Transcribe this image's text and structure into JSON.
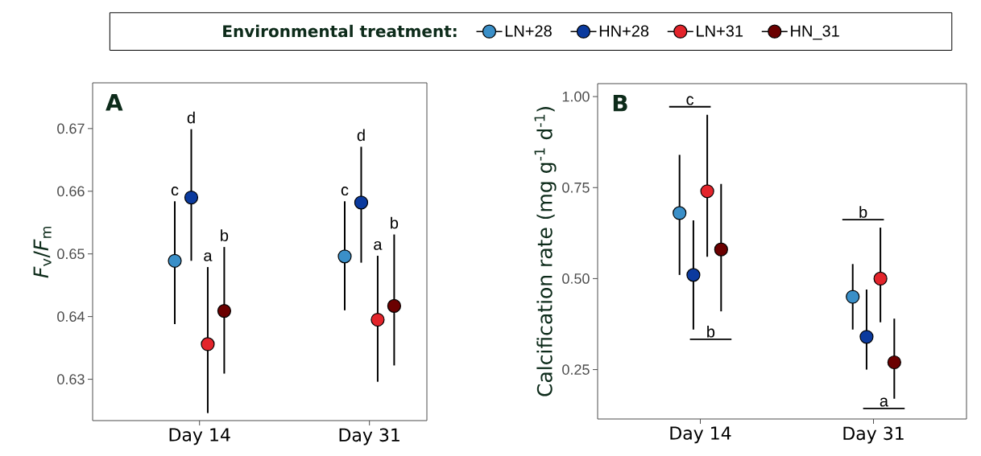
{
  "chart_data": [
    {
      "type": "scatter",
      "title": "A",
      "ylabel": "*F*$_{v}$/*F*$_{m}$",
      "legend_title": "Environmental treatment:",
      "legend": "top",
      "categories": [
        "Day 14",
        "Day 31"
      ],
      "ylim": [
        0.6234,
        0.6773
      ],
      "yticks": [
        0.63,
        0.64,
        0.65,
        0.66,
        0.67
      ],
      "series": [
        {
          "name": "LN+28",
          "color": "#3a8fc8",
          "values": [
            0.6489,
            0.6496
          ],
          "errors": [
            [
              0.6388,
              0.6584
            ],
            [
              0.641,
              0.6584
            ]
          ]
        },
        {
          "name": "HN+28",
          "color": "#0b3a9e",
          "values": [
            0.659,
            0.6582
          ],
          "errors": [
            [
              0.6489,
              0.6699
            ],
            [
              0.6486,
              0.6671
            ]
          ]
        },
        {
          "name": "LN+31",
          "color": "#e3242b",
          "values": [
            0.6356,
            0.6395
          ],
          "errors": [
            [
              0.6246,
              0.6479
            ],
            [
              0.6296,
              0.6497
            ]
          ]
        },
        {
          "name": "HN_31",
          "color": "#6b0000",
          "values": [
            0.6409,
            0.6417
          ],
          "errors": [
            [
              0.6309,
              0.6511
            ],
            [
              0.6322,
              0.6531
            ]
          ]
        }
      ],
      "annotations": [
        "c",
        "d",
        "a",
        "b",
        "c",
        "d",
        "a",
        "b"
      ]
    },
    {
      "type": "scatter",
      "title": "B",
      "ylabel": "Calcification rate (mg g$^{-1}$ d$^{-1}$)",
      "categories": [
        "Day 14",
        "Day 31"
      ],
      "ylim": [
        0.1143,
        1.0356
      ],
      "yticks": [
        0.25,
        {
          "value": 0.5,
          "label": "0.50"
        },
        0.75,
        {
          "value": 1.0,
          "label": "1.00"
        }
      ],
      "series": [
        {
          "color": "#3a8fc8",
          "values": [
            0.68,
            0.45
          ],
          "errors": [
            [
              0.51,
              0.84
            ],
            [
              0.36,
              0.54
            ]
          ]
        },
        {
          "color": "#0b3a9e",
          "values": [
            0.51,
            0.34
          ],
          "errors": [
            [
              0.36,
              0.66
            ],
            [
              0.25,
              0.47
            ]
          ]
        },
        {
          "color": "#e3242b",
          "values": [
            0.74,
            0.5
          ],
          "errors": [
            [
              0.56,
              0.95
            ],
            [
              0.38,
              0.64
            ]
          ]
        },
        {
          "color": "#6b0000",
          "values": [
            0.58,
            0.27
          ],
          "errors": [
            [
              0.41,
              0.76
            ],
            [
              0.17,
              0.39
            ]
          ]
        }
      ],
      "annotations": [
        "c",
        "b",
        "b",
        "a"
      ]
    }
  ]
}
